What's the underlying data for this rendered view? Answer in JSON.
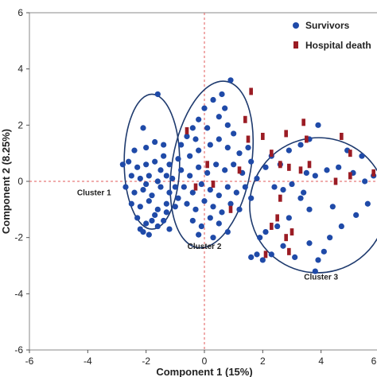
{
  "chart_data": {
    "type": "scatter",
    "title": "",
    "xlabel": "Component 1 (15%)",
    "ylabel": "Component 2 (8.25%)",
    "xlim": [
      -6,
      6
    ],
    "ylim": [
      -6,
      6
    ],
    "xticks": [
      -6,
      -4,
      -2,
      0,
      2,
      4,
      6
    ],
    "yticks": [
      -6,
      -4,
      -2,
      0,
      2,
      4,
      6
    ],
    "reference_lines": {
      "x": 0,
      "y": 0,
      "style": "dashed",
      "color": "#e05a5a"
    },
    "legend": {
      "position": "top-right",
      "entries": [
        "Survivors",
        "Hospital death"
      ]
    },
    "series": [
      {
        "name": "Survivors",
        "marker": "circle",
        "color": "#1f4aa8",
        "points": [
          [
            -1.6,
            3.1
          ],
          [
            -2.1,
            1.9
          ],
          [
            -2.4,
            1.1
          ],
          [
            -2.0,
            1.2
          ],
          [
            -1.7,
            1.4
          ],
          [
            -1.4,
            1.3
          ],
          [
            -2.6,
            0.7
          ],
          [
            -2.3,
            0.5
          ],
          [
            -2.0,
            0.6
          ],
          [
            -1.7,
            0.7
          ],
          [
            -1.5,
            0.4
          ],
          [
            -1.2,
            0.6
          ],
          [
            -2.5,
            0.2
          ],
          [
            -2.2,
            0.1
          ],
          [
            -1.9,
            0.2
          ],
          [
            -1.6,
            0.0
          ],
          [
            -1.3,
            0.2
          ],
          [
            -1.1,
            0.1
          ],
          [
            -2.8,
            0.6
          ],
          [
            -2.7,
            -0.2
          ],
          [
            -2.4,
            -0.4
          ],
          [
            -2.1,
            -0.3
          ],
          [
            -1.8,
            -0.5
          ],
          [
            -1.5,
            -0.2
          ],
          [
            -1.2,
            -0.4
          ],
          [
            -1.0,
            -0.2
          ],
          [
            -2.5,
            -0.8
          ],
          [
            -2.2,
            -0.9
          ],
          [
            -1.9,
            -0.7
          ],
          [
            -1.6,
            -1.0
          ],
          [
            -1.3,
            -0.8
          ],
          [
            -1.0,
            -0.9
          ],
          [
            -2.3,
            -1.3
          ],
          [
            -2.0,
            -1.5
          ],
          [
            -1.7,
            -1.2
          ],
          [
            -1.4,
            -1.4
          ],
          [
            -2.2,
            -1.7
          ],
          [
            -1.9,
            -1.9
          ],
          [
            -1.6,
            -1.6
          ],
          [
            -1.2,
            -1.7
          ],
          [
            -2.1,
            -1.8
          ],
          [
            -1.8,
            -1.4
          ],
          [
            -1.3,
            -1.1
          ],
          [
            -0.9,
            -0.6
          ],
          [
            -1.4,
            0.9
          ],
          [
            -2.0,
            -0.1
          ],
          [
            -0.9,
            0.8
          ],
          [
            -0.8,
            1.3
          ],
          [
            -0.6,
            1.6
          ],
          [
            -0.4,
            1.9
          ],
          [
            -0.2,
            2.2
          ],
          [
            0.0,
            2.6
          ],
          [
            0.3,
            2.9
          ],
          [
            0.6,
            3.1
          ],
          [
            0.9,
            3.6
          ],
          [
            0.5,
            2.3
          ],
          [
            0.8,
            2.0
          ],
          [
            1.0,
            1.7
          ],
          [
            -0.5,
            0.9
          ],
          [
            -0.2,
            1.1
          ],
          [
            0.2,
            1.3
          ],
          [
            0.5,
            1.5
          ],
          [
            0.8,
            1.2
          ],
          [
            1.2,
            1.0
          ],
          [
            -0.8,
            0.4
          ],
          [
            -0.5,
            0.2
          ],
          [
            -0.2,
            0.5
          ],
          [
            0.1,
            0.3
          ],
          [
            0.4,
            0.6
          ],
          [
            0.7,
            0.4
          ],
          [
            1.0,
            0.6
          ],
          [
            1.3,
            0.3
          ],
          [
            -0.7,
            -0.2
          ],
          [
            -0.4,
            -0.4
          ],
          [
            -0.1,
            -0.1
          ],
          [
            0.2,
            -0.3
          ],
          [
            0.5,
            -0.5
          ],
          [
            0.8,
            -0.2
          ],
          [
            1.1,
            -0.4
          ],
          [
            -0.6,
            -0.8
          ],
          [
            -0.3,
            -1.0
          ],
          [
            0.0,
            -0.7
          ],
          [
            0.3,
            -0.9
          ],
          [
            0.6,
            -1.1
          ],
          [
            0.9,
            -0.8
          ],
          [
            1.2,
            -1.0
          ],
          [
            -0.4,
            -1.4
          ],
          [
            -0.1,
            -1.6
          ],
          [
            0.2,
            -1.3
          ],
          [
            0.5,
            -1.5
          ],
          [
            0.8,
            -1.8
          ],
          [
            0.3,
            -2.0
          ],
          [
            -0.2,
            -1.9
          ],
          [
            1.5,
            1.2
          ],
          [
            1.6,
            0.7
          ],
          [
            1.4,
            -0.2
          ],
          [
            1.6,
            -0.6
          ],
          [
            -0.3,
            1.5
          ],
          [
            0.1,
            1.9
          ],
          [
            0.7,
            2.6
          ],
          [
            1.8,
            0.1
          ],
          [
            2.1,
            0.5
          ],
          [
            2.3,
            0.9
          ],
          [
            2.6,
            0.6
          ],
          [
            2.9,
            1.1
          ],
          [
            3.3,
            1.3
          ],
          [
            3.6,
            1.5
          ],
          [
            3.9,
            2.0
          ],
          [
            3.5,
            0.3
          ],
          [
            3.0,
            -0.1
          ],
          [
            2.7,
            -0.3
          ],
          [
            2.4,
            -0.2
          ],
          [
            3.4,
            -0.4
          ],
          [
            3.8,
            0.2
          ],
          [
            4.2,
            0.4
          ],
          [
            4.6,
            0.5
          ],
          [
            5.1,
            0.3
          ],
          [
            5.5,
            0.0
          ],
          [
            5.8,
            0.2
          ],
          [
            3.3,
            -0.6
          ],
          [
            2.9,
            -1.3
          ],
          [
            2.5,
            -1.6
          ],
          [
            2.1,
            -1.8
          ],
          [
            1.9,
            -2.0
          ],
          [
            2.3,
            -2.6
          ],
          [
            2.7,
            -2.3
          ],
          [
            3.1,
            -2.7
          ],
          [
            3.6,
            -2.2
          ],
          [
            3.9,
            -2.8
          ],
          [
            4.3,
            -2.0
          ],
          [
            4.7,
            -1.6
          ],
          [
            5.2,
            -1.2
          ],
          [
            5.6,
            -0.8
          ],
          [
            1.6,
            -2.7
          ],
          [
            2.0,
            -2.8
          ],
          [
            1.8,
            -2.6
          ],
          [
            3.8,
            -3.2
          ],
          [
            4.1,
            -2.5
          ],
          [
            4.9,
            1.1
          ],
          [
            5.4,
            0.9
          ],
          [
            3.6,
            -1.0
          ],
          [
            4.4,
            -0.9
          ]
        ]
      },
      {
        "name": "Hospital death",
        "marker": "rect",
        "color": "#9b1c24",
        "points": [
          [
            1.6,
            3.2
          ],
          [
            1.4,
            2.2
          ],
          [
            1.5,
            1.5
          ],
          [
            2.0,
            1.6
          ],
          [
            2.3,
            1.0
          ],
          [
            2.8,
            1.7
          ],
          [
            3.5,
            1.5
          ],
          [
            3.4,
            2.1
          ],
          [
            4.7,
            1.6
          ],
          [
            5.0,
            1.0
          ],
          [
            2.6,
            0.6
          ],
          [
            2.9,
            0.5
          ],
          [
            3.3,
            0.4
          ],
          [
            3.6,
            0.6
          ],
          [
            4.5,
            0.0
          ],
          [
            5.0,
            0.2
          ],
          [
            5.8,
            0.3
          ],
          [
            2.6,
            -0.6
          ],
          [
            2.5,
            -1.3
          ],
          [
            2.3,
            -1.6
          ],
          [
            3.0,
            -1.8
          ],
          [
            2.8,
            -2.0
          ],
          [
            2.1,
            -2.6
          ],
          [
            2.9,
            -2.5
          ],
          [
            0.9,
            -1.0
          ],
          [
            1.2,
            0.4
          ],
          [
            -0.6,
            1.8
          ],
          [
            0.1,
            0.6
          ],
          [
            0.3,
            -0.1
          ],
          [
            -0.3,
            -0.2
          ]
        ]
      }
    ],
    "clusters": [
      {
        "name": "Cluster 1",
        "center": [
          -1.8,
          0.7
        ],
        "rx": 0.95,
        "ry": 2.4,
        "rotation_deg": 0
      },
      {
        "name": "Cluster 2",
        "center": [
          0.25,
          0.6
        ],
        "rx": 1.35,
        "ry": 3.0,
        "rotation_deg": 10
      },
      {
        "name": "Cluster 3",
        "center": [
          3.9,
          -0.85
        ],
        "rx": 2.35,
        "ry": 2.4,
        "rotation_deg": -16
      }
    ]
  }
}
